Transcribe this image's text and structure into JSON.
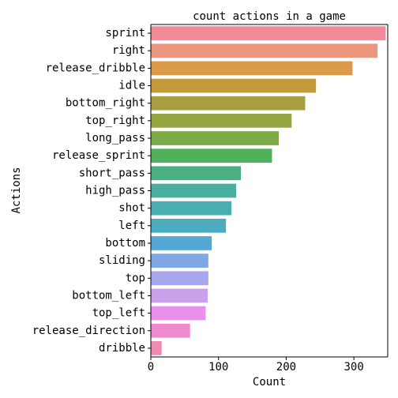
{
  "chart_data": {
    "type": "bar",
    "orientation": "horizontal",
    "title": "count actions in a game",
    "xlabel": "Count",
    "ylabel": "Actions",
    "xlim": [
      0,
      350
    ],
    "xticks": [
      0,
      100,
      200,
      300
    ],
    "grid": false,
    "categories": [
      "sprint",
      "right",
      "release_dribble",
      "idle",
      "bottom_right",
      "top_right",
      "long_pass",
      "release_sprint",
      "short_pass",
      "high_pass",
      "shot",
      "left",
      "bottom",
      "sliding",
      "top",
      "bottom_left",
      "top_left",
      "release_direction",
      "dribble"
    ],
    "values": [
      347,
      335,
      298,
      244,
      228,
      208,
      189,
      179,
      133,
      126,
      119,
      111,
      90,
      85,
      85,
      84,
      81,
      58,
      16
    ],
    "colors": [
      "#f08a98",
      "#eb967e",
      "#dc9b4a",
      "#c39b3c",
      "#a8a040",
      "#97a542",
      "#7dab47",
      "#4eb05a",
      "#4ab083",
      "#4aafa0",
      "#49aeb0",
      "#4bacbf",
      "#55a8d4",
      "#80a8e6",
      "#a8a6ec",
      "#c8a2ea",
      "#e890ea",
      "#f08ad0",
      "#f08ab2"
    ]
  }
}
